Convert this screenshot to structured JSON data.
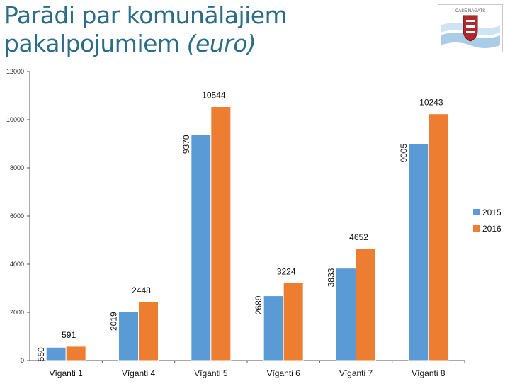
{
  "slide": {
    "title_line1": "Parādi par komunālajiem",
    "title_line2_main": "pakalpojumiem",
    "title_line2_em": "(euro)",
    "logo_text": "CASE NAGATS"
  },
  "colors": {
    "title": "#2b6c86",
    "series_2015": "#5b9bd5",
    "series_2016": "#ed7d31",
    "axis": "#555555"
  },
  "chart_data": {
    "type": "bar",
    "title": "",
    "xlabel": "",
    "ylabel": "",
    "categories": [
      "Vīganti 1",
      "Vīganti 4",
      "Vīganti 5",
      "Vīganti 6",
      "Vīganti 7",
      "Vīganti 8"
    ],
    "series": [
      {
        "name": "2015",
        "values": [
          550,
          2019,
          9370,
          2689,
          3833,
          9005
        ]
      },
      {
        "name": "2016",
        "values": [
          591,
          2448,
          10544,
          3224,
          4652,
          10243
        ]
      }
    ],
    "ylim": [
      0,
      12000
    ],
    "yticks": [
      0,
      2000,
      4000,
      6000,
      8000,
      10000,
      12000
    ],
    "ytick_labels": [
      "0",
      "2000",
      "4000",
      "6000",
      "8000",
      "10000",
      "12000"
    ],
    "grid": false,
    "legend_position": "right"
  }
}
